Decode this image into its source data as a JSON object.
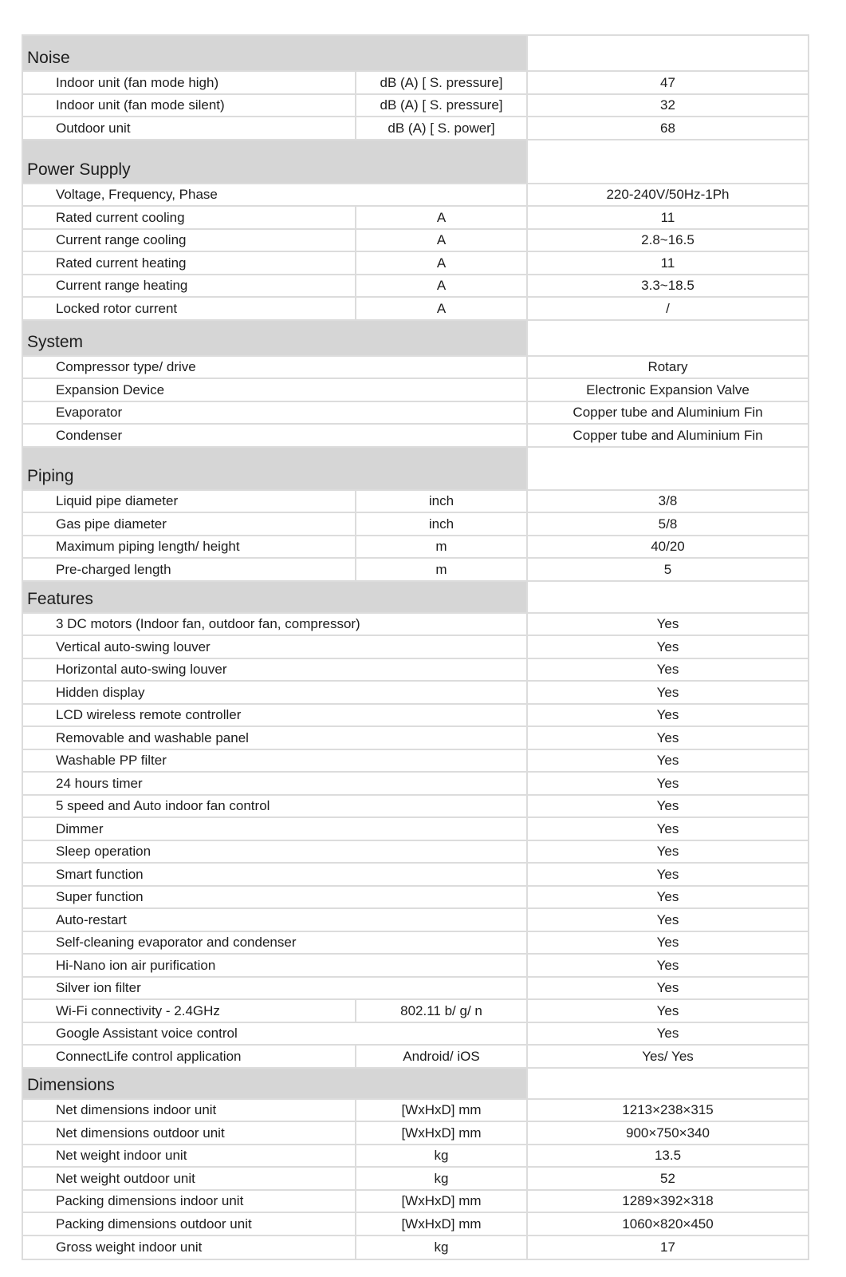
{
  "colors": {
    "section_header_bg": "#d6d6d6",
    "grid_line": "#dcdcdc",
    "text": "#1d1d1d",
    "row_bg": "#ffffff"
  },
  "table": {
    "sections": [
      {
        "title": "Noise",
        "rows": [
          {
            "label": "Indoor unit (fan mode high)",
            "unit": "dB (A) [ S. pressure]",
            "value": "47"
          },
          {
            "label": "Indoor unit (fan mode silent)",
            "unit": "dB (A) [ S. pressure]",
            "value": "32"
          },
          {
            "label": "Outdoor unit",
            "unit": "dB (A) [ S. power]",
            "value": "68"
          }
        ]
      },
      {
        "title": "Power Supply",
        "rows": [
          {
            "label": "Voltage, Frequency, Phase",
            "unit": null,
            "value": "220-240V/50Hz-1Ph"
          },
          {
            "label": "Rated current cooling",
            "unit": "A",
            "value": "11"
          },
          {
            "label": "Current range cooling",
            "unit": "A",
            "value": "2.8~16.5"
          },
          {
            "label": "Rated current heating",
            "unit": "A",
            "value": "11"
          },
          {
            "label": "Current range heating",
            "unit": "A",
            "value": "3.3~18.5"
          },
          {
            "label": "Locked rotor current",
            "unit": "A",
            "value": "/"
          }
        ]
      },
      {
        "title": "System",
        "rows": [
          {
            "label": "Compressor type/ drive",
            "unit": null,
            "value": "Rotary"
          },
          {
            "label": "Expansion Device",
            "unit": null,
            "value": "Electronic Expansion Valve"
          },
          {
            "label": "Evaporator",
            "unit": null,
            "value": "Copper tube and Aluminium Fin"
          },
          {
            "label": "Condenser",
            "unit": null,
            "value": "Copper tube and Aluminium Fin"
          }
        ]
      },
      {
        "title": "Piping",
        "rows": [
          {
            "label": "Liquid pipe diameter",
            "unit": "inch",
            "value": "3/8"
          },
          {
            "label": "Gas pipe diameter",
            "unit": "inch",
            "value": "5/8"
          },
          {
            "label": "Maximum piping length/ height",
            "unit": "m",
            "value": "40/20"
          },
          {
            "label": "Pre-charged length",
            "unit": "m",
            "value": "5"
          }
        ]
      },
      {
        "title": "Features",
        "rows": [
          {
            "label": "3 DC motors (Indoor fan, outdoor fan, compressor)",
            "unit": null,
            "value": "Yes"
          },
          {
            "label": "Vertical auto-swing louver",
            "unit": null,
            "value": "Yes"
          },
          {
            "label": "Horizontal auto-swing louver",
            "unit": null,
            "value": "Yes"
          },
          {
            "label": "Hidden display",
            "unit": null,
            "value": "Yes"
          },
          {
            "label": "LCD wireless remote controller",
            "unit": null,
            "value": "Yes"
          },
          {
            "label": "Removable and washable panel",
            "unit": null,
            "value": "Yes"
          },
          {
            "label": "Washable PP filter",
            "unit": null,
            "value": "Yes"
          },
          {
            "label": "24 hours timer",
            "unit": null,
            "value": "Yes"
          },
          {
            "label": "5 speed and Auto indoor fan control",
            "unit": null,
            "value": "Yes"
          },
          {
            "label": "Dimmer",
            "unit": null,
            "value": "Yes"
          },
          {
            "label": "Sleep operation",
            "unit": null,
            "value": "Yes"
          },
          {
            "label": "Smart function",
            "unit": null,
            "value": "Yes"
          },
          {
            "label": "Super function",
            "unit": null,
            "value": "Yes"
          },
          {
            "label": "Auto-restart",
            "unit": null,
            "value": "Yes"
          },
          {
            "label": "Self-cleaning evaporator and condenser",
            "unit": null,
            "value": "Yes"
          },
          {
            "label": "Hi-Nano ion air purification",
            "unit": null,
            "value": "Yes"
          },
          {
            "label": "Silver ion filter",
            "unit": null,
            "value": "Yes"
          },
          {
            "label": "Wi-Fi connectivity - 2.4GHz",
            "unit": "802.11 b/ g/ n",
            "value": "Yes"
          },
          {
            "label": "Google Assistant  voice control",
            "unit": null,
            "value": "Yes"
          },
          {
            "label": "ConnectLife control application",
            "unit": "Android/ iOS",
            "value": "Yes/ Yes"
          }
        ]
      },
      {
        "title": "Dimensions",
        "rows": [
          {
            "label": "Net dimensions indoor unit",
            "unit": "[WxHxD] mm",
            "value": "1213×238×315"
          },
          {
            "label": "Net dimensions outdoor unit",
            "unit": "[WxHxD] mm",
            "value": "900×750×340"
          },
          {
            "label": "Net weight indoor unit",
            "unit": "kg",
            "value": "13.5"
          },
          {
            "label": "Net weight outdoor unit",
            "unit": "kg",
            "value": "52"
          },
          {
            "label": "Packing dimensions indoor unit",
            "unit": "[WxHxD] mm",
            "value": "1289×392×318"
          },
          {
            "label": "Packing dimensions outdoor unit",
            "unit": "[WxHxD] mm",
            "value": "1060×820×450"
          },
          {
            "label": "Gross weight indoor unit",
            "unit": "kg",
            "value": "17"
          }
        ]
      }
    ]
  }
}
